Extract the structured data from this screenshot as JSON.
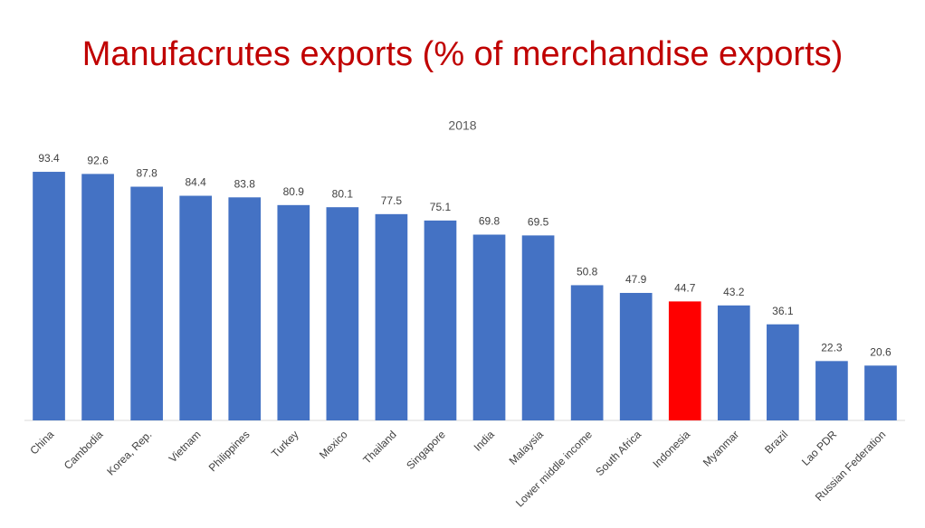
{
  "chart_data": {
    "type": "bar",
    "title": "Manufacrutes exports (% of merchandise exports)",
    "subtitle": "2018",
    "categories": [
      "China",
      "Cambodia",
      "Korea, Rep.",
      "Vietnam",
      "Philippines",
      "Turkey",
      "Mexico",
      "Thailand",
      "Singapore",
      "India",
      "Malaysia",
      "Lower middle income",
      "South Africa",
      "Indonesia",
      "Myanmar",
      "Brazil",
      "Lao PDR",
      "Russian Federation"
    ],
    "values": [
      93.4,
      92.6,
      87.8,
      84.4,
      83.8,
      80.9,
      80.1,
      77.5,
      75.1,
      69.8,
      69.5,
      50.8,
      47.9,
      44.7,
      43.2,
      36.1,
      22.3,
      20.6
    ],
    "colors": [
      "#4472c4",
      "#4472c4",
      "#4472c4",
      "#4472c4",
      "#4472c4",
      "#4472c4",
      "#4472c4",
      "#4472c4",
      "#4472c4",
      "#4472c4",
      "#4472c4",
      "#4472c4",
      "#4472c4",
      "#ff0000",
      "#4472c4",
      "#4472c4",
      "#4472c4",
      "#4472c4"
    ],
    "ylim": [
      0,
      100
    ]
  }
}
